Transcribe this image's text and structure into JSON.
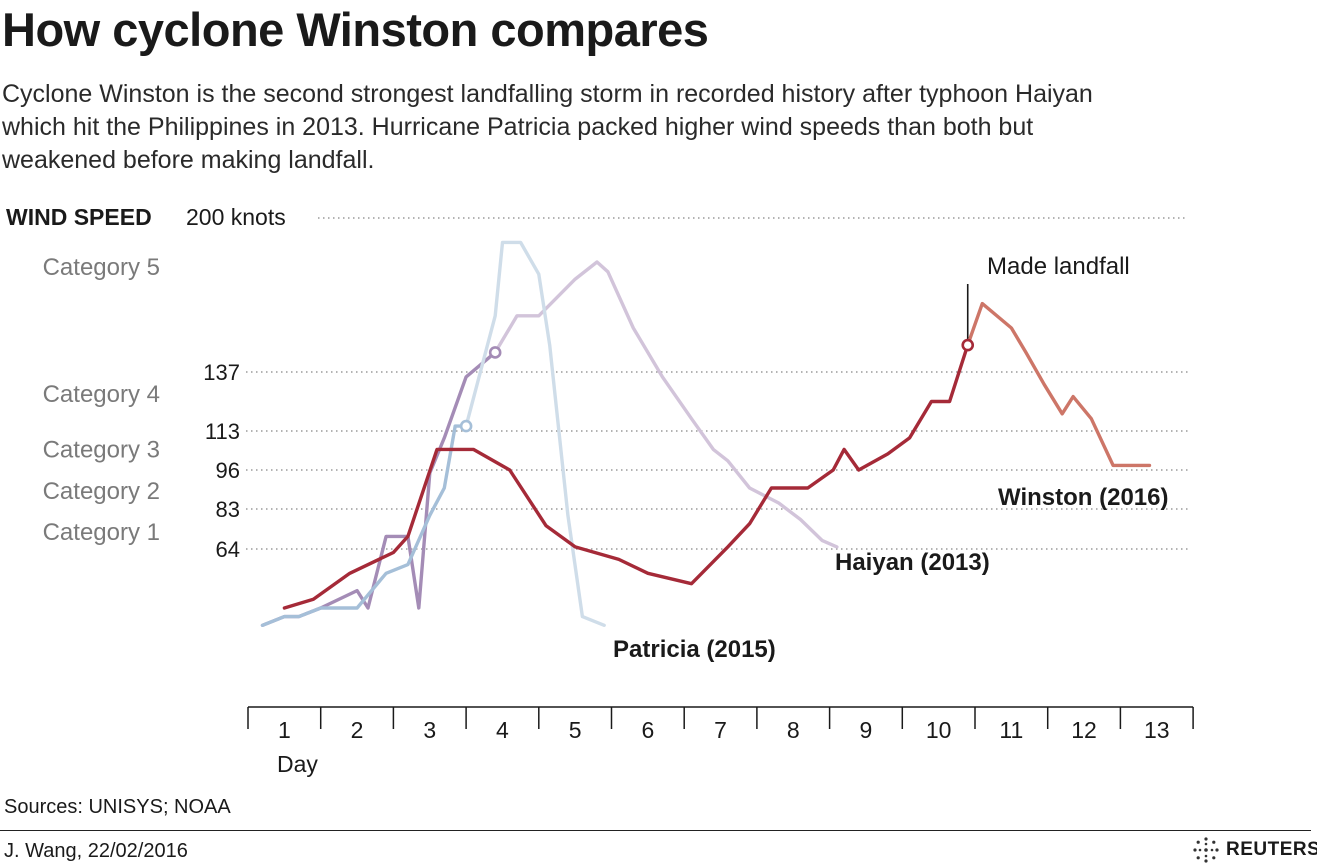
{
  "header": {
    "title": "How cyclone Winston compares",
    "subtitle": "Cyclone Winston is the second strongest landfalling storm in recorded history after typhoon Haiyan which hit the Philippines in 2013. Hurricane Patricia packed higher wind speeds than both but weakened before making landfall."
  },
  "chart_data": {
    "type": "line",
    "ylabel": "WIND SPEED",
    "ylabel_top": "200 knots",
    "xlabel": "Day",
    "xlim": [
      0.5,
      13.5
    ],
    "ylim": [
      0,
      200
    ],
    "grid": true,
    "gridlines": [
      200,
      137,
      113,
      96,
      83,
      64
    ],
    "y_tick_labels": [
      "137",
      "113",
      "96",
      "83",
      "64"
    ],
    "categories": [
      {
        "label": "Category 5",
        "y": 180
      },
      {
        "label": "Category 4",
        "y": 128
      },
      {
        "label": "Category 3",
        "y": 105
      },
      {
        "label": "Category 2",
        "y": 89
      },
      {
        "label": "Category 1",
        "y": 72
      }
    ],
    "x_ticks": [
      "1",
      "2",
      "3",
      "4",
      "5",
      "6",
      "7",
      "8",
      "9",
      "10",
      "11",
      "12",
      "13"
    ],
    "series": [
      {
        "name": "Haiyan (2013)",
        "color": "#a48cb6",
        "faded_color": "#d2c4da",
        "landfall_index": 12,
        "points": [
          [
            0.7,
            20
          ],
          [
            1,
            25
          ],
          [
            1.2,
            25
          ],
          [
            1.5,
            30
          ],
          [
            2,
            40
          ],
          [
            2.15,
            30
          ],
          [
            2.4,
            70
          ],
          [
            2.7,
            70
          ],
          [
            2.85,
            30
          ],
          [
            3,
            95
          ],
          [
            3.2,
            110
          ],
          [
            3.5,
            135
          ],
          [
            3.9,
            145
          ],
          [
            4.2,
            160
          ],
          [
            4.5,
            160
          ],
          [
            5,
            175
          ],
          [
            5.3,
            182
          ],
          [
            5.45,
            178
          ],
          [
            5.8,
            155
          ],
          [
            6.2,
            135
          ],
          [
            6.6,
            118
          ],
          [
            6.9,
            105
          ],
          [
            7.1,
            100
          ],
          [
            7.4,
            90
          ],
          [
            7.8,
            85
          ],
          [
            8.1,
            78
          ],
          [
            8.4,
            68
          ],
          [
            8.6,
            65
          ]
        ]
      },
      {
        "name": "Patricia (2015)",
        "color": "#a5bfd8",
        "faded_color": "#cfdde9",
        "landfall_index": 10,
        "points": [
          [
            0.7,
            20
          ],
          [
            1,
            25
          ],
          [
            1.2,
            25
          ],
          [
            1.5,
            30
          ],
          [
            2,
            30
          ],
          [
            2.4,
            50
          ],
          [
            2.7,
            55
          ],
          [
            3,
            80
          ],
          [
            3.2,
            90
          ],
          [
            3.35,
            115
          ],
          [
            3.5,
            115
          ],
          [
            3.9,
            160
          ],
          [
            4,
            190
          ],
          [
            4.25,
            190
          ],
          [
            4.5,
            177
          ],
          [
            4.65,
            148
          ],
          [
            4.9,
            80
          ],
          [
            5.1,
            25
          ],
          [
            5.4,
            20
          ]
        ]
      },
      {
        "name": "Winston (2016)",
        "color": "#a52a38",
        "faded_color": "#cd7668",
        "landfall_index": 24,
        "points": [
          [
            1,
            30
          ],
          [
            1.4,
            35
          ],
          [
            1.9,
            50
          ],
          [
            2.5,
            62
          ],
          [
            2.7,
            70
          ],
          [
            3.1,
            105
          ],
          [
            3.6,
            105
          ],
          [
            4.1,
            96
          ],
          [
            4.6,
            75
          ],
          [
            5,
            65
          ],
          [
            5.6,
            58
          ],
          [
            6,
            50
          ],
          [
            6.6,
            44
          ],
          [
            7.1,
            65
          ],
          [
            7.4,
            76
          ],
          [
            7.7,
            90
          ],
          [
            8.2,
            90
          ],
          [
            8.55,
            96
          ],
          [
            8.7,
            105
          ],
          [
            8.9,
            96
          ],
          [
            9.3,
            103
          ],
          [
            9.6,
            110
          ],
          [
            9.9,
            125
          ],
          [
            10.15,
            125
          ],
          [
            10.4,
            148
          ],
          [
            10.6,
            165
          ],
          [
            11,
            155
          ],
          [
            11.2,
            145
          ],
          [
            11.45,
            132
          ],
          [
            11.7,
            120
          ],
          [
            11.85,
            127
          ],
          [
            12.1,
            118
          ],
          [
            12.4,
            98
          ],
          [
            12.9,
            98
          ]
        ]
      }
    ],
    "annotation": "Made landfall"
  },
  "footer": {
    "sources": "Sources: UNISYS; NOAA",
    "credit": "J. Wang, 22/02/2016",
    "logo_text": "REUTERS"
  }
}
